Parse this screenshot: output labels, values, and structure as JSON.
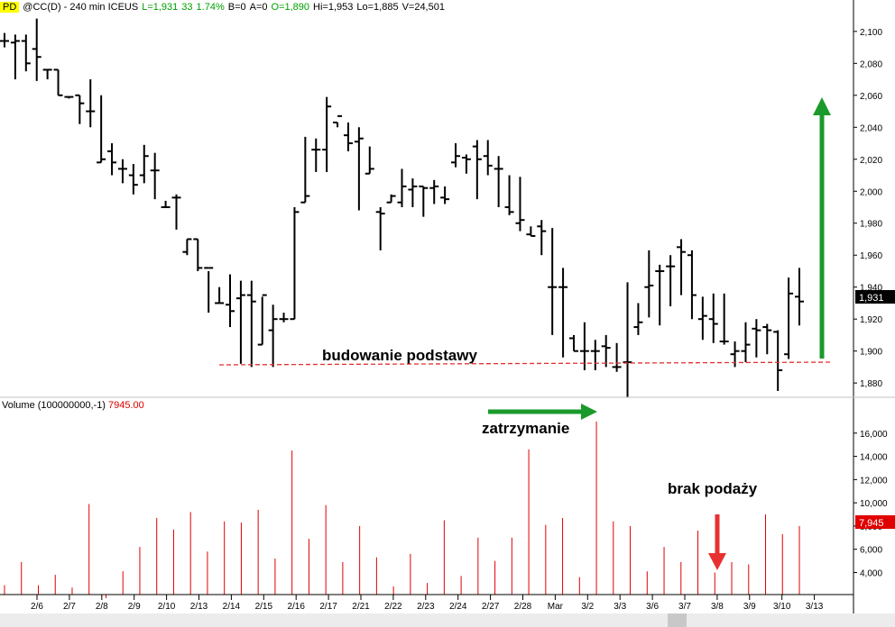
{
  "header": {
    "badge": "PD",
    "symbol": "@CC(D) - 240 min  ICEUS",
    "last": "L=1,931",
    "change": "33",
    "change_pct": "1.74%",
    "bid": "B=0",
    "ask": "A=0",
    "open": "O=1,890",
    "high": "Hi=1,953",
    "low": "Lo=1,885",
    "volume": "V=24,501"
  },
  "volume_panel": {
    "label": "Volume (100000000,-1)",
    "value": "7945.00",
    "last_tag": "7,945"
  },
  "price_tag": "1,931",
  "annotations": {
    "base": "budowanie podstawy",
    "stop": "zatrzymanie",
    "no_supply": "brak podaży"
  },
  "colors": {
    "bars": "#000000",
    "volume": "#e00000",
    "arrow_green": "#1a9a2a",
    "arrow_red": "#e83030",
    "support_line": "#e03030",
    "grid": "#e8e8e8"
  },
  "chart_data": [
    {
      "type": "ohlc",
      "series": [
        {
          "values": [
            [
              2094,
              2099,
              2090,
              2094
            ],
            [
              2093,
              2098,
              2070,
              2094
            ],
            [
              2094,
              2098,
              2075,
              2080
            ],
            [
              2089,
              2108,
              2069,
              2084
            ],
            [
              2076,
              2076,
              2070,
              2076
            ],
            [
              2076,
              2076,
              2060,
              2060
            ],
            [
              2059,
              2059,
              2058,
              2059
            ],
            [
              2060,
              2060,
              2042,
              2055
            ],
            [
              2050,
              2070,
              2040,
              2050
            ],
            [
              2018,
              2060,
              2018,
              2020
            ],
            [
              2025,
              2030,
              2010,
              2018
            ],
            [
              2014,
              2020,
              2005,
              2014
            ],
            [
              2010,
              2017,
              1998,
              2004
            ],
            [
              2010,
              2029,
              2005,
              2022
            ],
            [
              2013,
              2024,
              1995,
              2013
            ],
            [
              1990,
              1994,
              1990,
              1990
            ],
            [
              1996,
              1998,
              1976,
              1996
            ],
            [
              1962,
              1970,
              1960,
              1970
            ],
            [
              1970,
              1970,
              1950,
              1952
            ],
            [
              1952,
              1950,
              1924,
              1952
            ],
            [
              1930,
              1940,
              1930,
              1930
            ],
            [
              1929,
              1948,
              1915,
              1925
            ],
            [
              1933,
              1944,
              1892,
              1935
            ],
            [
              1935,
              1944,
              1890,
              1931
            ],
            [
              1904,
              1934,
              1904,
              1935
            ],
            [
              1913,
              1929,
              1890,
              1920
            ],
            [
              1920,
              1924,
              1918,
              1920
            ],
            [
              1920,
              1990,
              1920,
              1987
            ],
            [
              1993,
              2034,
              1993,
              1997
            ],
            [
              2026,
              2033,
              2012,
              2026
            ],
            [
              2026,
              2059,
              2012,
              2053
            ],
            [
              2043,
              2043,
              2040,
              2047
            ],
            [
              2035,
              2043,
              2025,
              2030
            ],
            [
              2031,
              2040,
              1988,
              2033
            ],
            [
              2011,
              2028,
              2011,
              2014
            ],
            [
              1987,
              1990,
              1963,
              1986
            ],
            [
              1993,
              1998,
              1993,
              1997
            ],
            [
              1993,
              2014,
              1990,
              2003
            ],
            [
              2001,
              2008,
              1990,
              2003
            ],
            [
              2003,
              2003,
              1984,
              2002
            ],
            [
              2002,
              2007,
              1992,
              2003
            ],
            [
              1996,
              2003,
              1992,
              1995
            ],
            [
              2018,
              2030,
              2015,
              2022
            ],
            [
              2021,
              2023,
              2011,
              2020
            ],
            [
              2028,
              2032,
              1995,
              2020
            ],
            [
              2022,
              2032,
              2010,
              2016
            ],
            [
              2014,
              2022,
              1990,
              2014
            ],
            [
              1990,
              2010,
              1985,
              1987
            ],
            [
              1980,
              2009,
              1975,
              1982
            ],
            [
              1973,
              1978,
              1972,
              1972
            ],
            [
              1978,
              1982,
              1960,
              1975
            ],
            [
              1940,
              1977,
              1910,
              1940
            ],
            [
              1940,
              1952,
              1896,
              1940
            ],
            [
              1908,
              1910,
              1900,
              1900
            ],
            [
              1900,
              1918,
              1888,
              1900
            ],
            [
              1900,
              1907,
              1888,
              1900
            ],
            [
              1903,
              1910,
              1890,
              1902
            ],
            [
              1890,
              1905,
              1887,
              1890
            ],
            [
              1893,
              1943,
              1871,
              1893
            ],
            [
              1915,
              1930,
              1910,
              1918
            ],
            [
              1940,
              1963,
              1921,
              1941
            ],
            [
              1950,
              1954,
              1916,
              1950
            ],
            [
              1953,
              1960,
              1928,
              1953
            ],
            [
              1965,
              1970,
              1935,
              1962
            ],
            [
              1960,
              1963,
              1920,
              1935
            ],
            [
              1920,
              1934,
              1907,
              1922
            ],
            [
              1920,
              1936,
              1905,
              1917
            ],
            [
              1906,
              1936,
              1904,
              1906
            ],
            [
              1898,
              1906,
              1890,
              1900
            ],
            [
              1900,
              1918,
              1893,
              1904
            ],
            [
              1914,
              1920,
              1896,
              1913
            ],
            [
              1915,
              1917,
              1898,
              1913
            ],
            [
              1912,
              1913,
              1875,
              1888
            ],
            [
              1898,
              1946,
              1895,
              1936
            ],
            [
              1934,
              1952,
              1916,
              1931
            ]
          ]
        }
      ],
      "yticks": [
        "1,880",
        "1,900",
        "1,920",
        "1,940",
        "1,960",
        "1,980",
        "2,000",
        "2,020",
        "2,040",
        "2,060",
        "2,080",
        "2,100"
      ],
      "ylim": [
        1866,
        2114
      ]
    },
    {
      "type": "bar",
      "series": [
        {
          "values": [
            2900,
            4900,
            2900,
            3800,
            2700,
            9900,
            1800,
            4100,
            6200,
            8700,
            7700,
            9200,
            5800,
            8400,
            8300,
            9400,
            5200,
            14500,
            6900,
            9800,
            4900,
            8000,
            5300,
            2800,
            5600,
            3100,
            8500,
            3700,
            7000,
            5000,
            7000,
            14600,
            8100,
            8700,
            3600,
            17000,
            8400,
            8000,
            4100,
            6200,
            4900,
            7600,
            4000,
            4900,
            4700,
            9000,
            7300,
            8000
          ]
        }
      ],
      "yticks": [
        "4,000",
        "6,000",
        "8,000",
        "10,000",
        "12,000",
        "14,000",
        "16,000"
      ],
      "ylim": [
        2100,
        18000
      ]
    }
  ],
  "xaxis": [
    "2/6",
    "2/7",
    "2/8",
    "2/9",
    "2/10",
    "2/13",
    "2/14",
    "2/15",
    "2/16",
    "2/17",
    "2/21",
    "2/22",
    "2/23",
    "2/24",
    "2/27",
    "2/28",
    "Mar",
    "3/2",
    "3/3",
    "3/6",
    "3/7",
    "3/8",
    "3/9",
    "3/10",
    "3/13"
  ]
}
